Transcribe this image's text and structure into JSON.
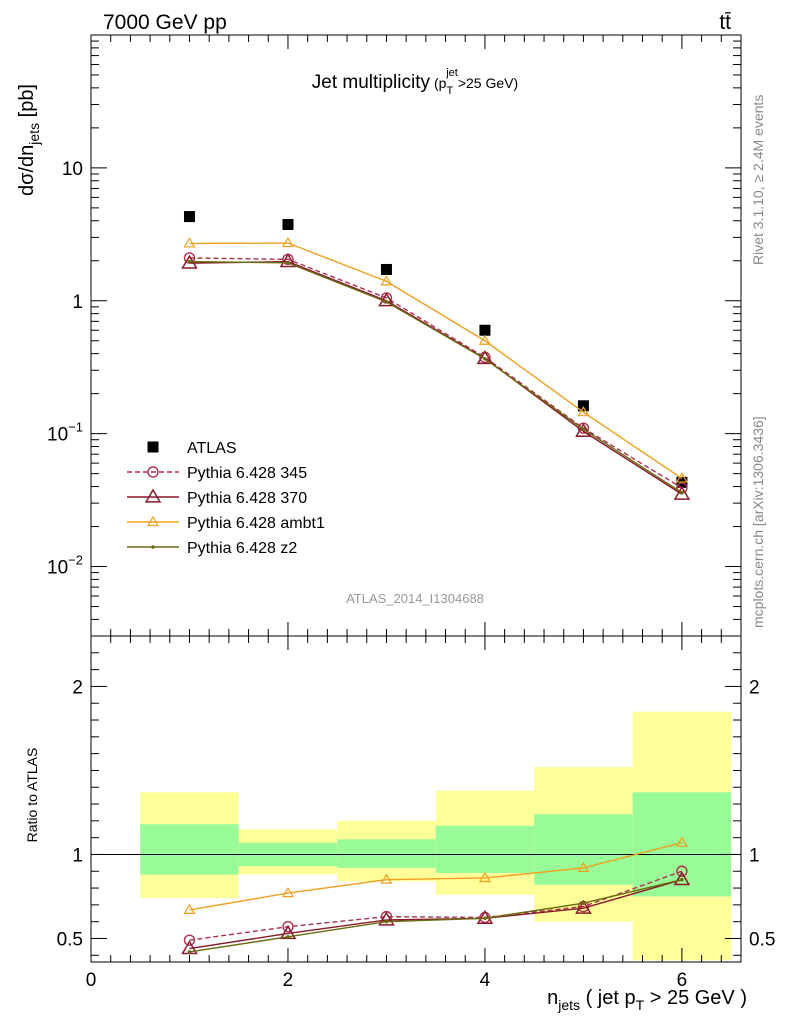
{
  "header": {
    "energy_label": "7000 GeV pp",
    "process_label": "tt̄"
  },
  "side_labels": {
    "rivet": "Rivet 3.1.10, ≥ 2.4M events",
    "mcplots": "mcplots.cern.ch [arXiv:1306.3436]"
  },
  "watermark": "ATLAS_2014_I1304688",
  "colors": {
    "atlas": "#000000",
    "p345": "#b03050",
    "p370": "#8b1a2a",
    "ambt1": "#f0a020",
    "z2": "#6b6b10",
    "band_inner": "#98fb98",
    "band_outer": "#ffff99"
  },
  "chart_data": [
    {
      "type": "scatter",
      "title": "Jet multiplicity",
      "title_suffix": {
        "base": "(p",
        "sup": "jet",
        "sub": "T",
        "tail": ">25 GeV)"
      },
      "ylabel": {
        "main": "dσ/dn",
        "sub": "jets",
        "tail": " [pb]"
      },
      "yscale": "log",
      "ylim": [
        0.003,
        100
      ],
      "xlim": [
        0,
        6.6
      ],
      "ytick_labels": [
        {
          "value": 0.01,
          "base": "10",
          "exp": "−2"
        },
        {
          "value": 0.1,
          "base": "10",
          "exp": "−1"
        },
        {
          "value": 1,
          "text": "1"
        },
        {
          "value": 10,
          "text": "10"
        }
      ],
      "x": [
        1,
        2,
        3,
        4,
        5,
        6
      ],
      "series": [
        {
          "name": "ATLAS",
          "key": "atlas",
          "marker": "square",
          "values": [
            4.3,
            3.75,
            1.72,
            0.6,
            0.162,
            0.043
          ]
        },
        {
          "name": "Pythia 6.428 345",
          "key": "p345",
          "marker": "circle",
          "dashed": true,
          "values": [
            2.1,
            2.05,
            1.05,
            0.375,
            0.11,
            0.039
          ]
        },
        {
          "name": "Pythia 6.428 370",
          "key": "p370",
          "marker": "triangle",
          "values": [
            1.92,
            1.97,
            1.0,
            0.368,
            0.104,
            0.035
          ]
        },
        {
          "name": "Pythia 6.428 ambt1",
          "key": "ambt1",
          "marker": "triangle-small",
          "values": [
            2.7,
            2.72,
            1.4,
            0.5,
            0.145,
            0.046
          ]
        },
        {
          "name": "Pythia 6.428 z2",
          "key": "z2",
          "marker": "dot",
          "values": [
            1.97,
            1.93,
            0.98,
            0.365,
            0.108,
            0.036
          ]
        }
      ],
      "legend_position": "lower-left"
    },
    {
      "type": "line",
      "ylabel": "Ratio to ATLAS",
      "xlabel": {
        "n": "n",
        "n_sub": "jets",
        "mid": " ( jet p",
        "pt_sub": "T",
        "tail": " > 25 GeV )"
      },
      "ylim": [
        0.36,
        2.3
      ],
      "xlim": [
        0,
        6.6
      ],
      "xtick_labels": [
        "0",
        "2",
        "4",
        "6"
      ],
      "xtick_values": [
        0,
        2,
        4,
        6
      ],
      "ytick_labels": [
        "0.5",
        "1",
        "2"
      ],
      "ytick_values": [
        0.5,
        1,
        2
      ],
      "reference": 1,
      "bins": [
        {
          "lo": 0.5,
          "hi": 1.5,
          "inner": [
            0.88,
            1.18
          ],
          "outer": [
            0.74,
            1.37
          ]
        },
        {
          "lo": 1.5,
          "hi": 2.5,
          "inner": [
            0.93,
            1.07
          ],
          "outer": [
            0.88,
            1.15
          ]
        },
        {
          "lo": 2.5,
          "hi": 3.5,
          "inner": [
            0.92,
            1.09
          ],
          "outer": [
            0.84,
            1.2
          ]
        },
        {
          "lo": 3.5,
          "hi": 4.5,
          "inner": [
            0.89,
            1.17
          ],
          "outer": [
            0.76,
            1.38
          ]
        },
        {
          "lo": 4.5,
          "hi": 5.5,
          "inner": [
            0.82,
            1.24
          ],
          "outer": [
            0.6,
            1.52
          ]
        },
        {
          "lo": 5.5,
          "hi": 6.5,
          "inner": [
            0.75,
            1.37
          ],
          "outer": [
            0.37,
            1.85
          ]
        }
      ],
      "x": [
        1,
        2,
        3,
        4,
        5,
        6
      ],
      "series": [
        {
          "key": "p345",
          "marker": "circle",
          "dashed": true,
          "values": [
            0.49,
            0.57,
            0.63,
            0.625,
            0.69,
            0.9
          ]
        },
        {
          "key": "p370",
          "marker": "triangle",
          "values": [
            0.44,
            0.53,
            0.61,
            0.62,
            0.68,
            0.85
          ]
        },
        {
          "key": "ambt1",
          "marker": "triangle-small",
          "values": [
            0.67,
            0.77,
            0.85,
            0.86,
            0.92,
            1.07
          ]
        },
        {
          "key": "z2",
          "marker": "dot",
          "values": [
            0.42,
            0.51,
            0.6,
            0.62,
            0.71,
            0.85
          ]
        }
      ]
    }
  ]
}
